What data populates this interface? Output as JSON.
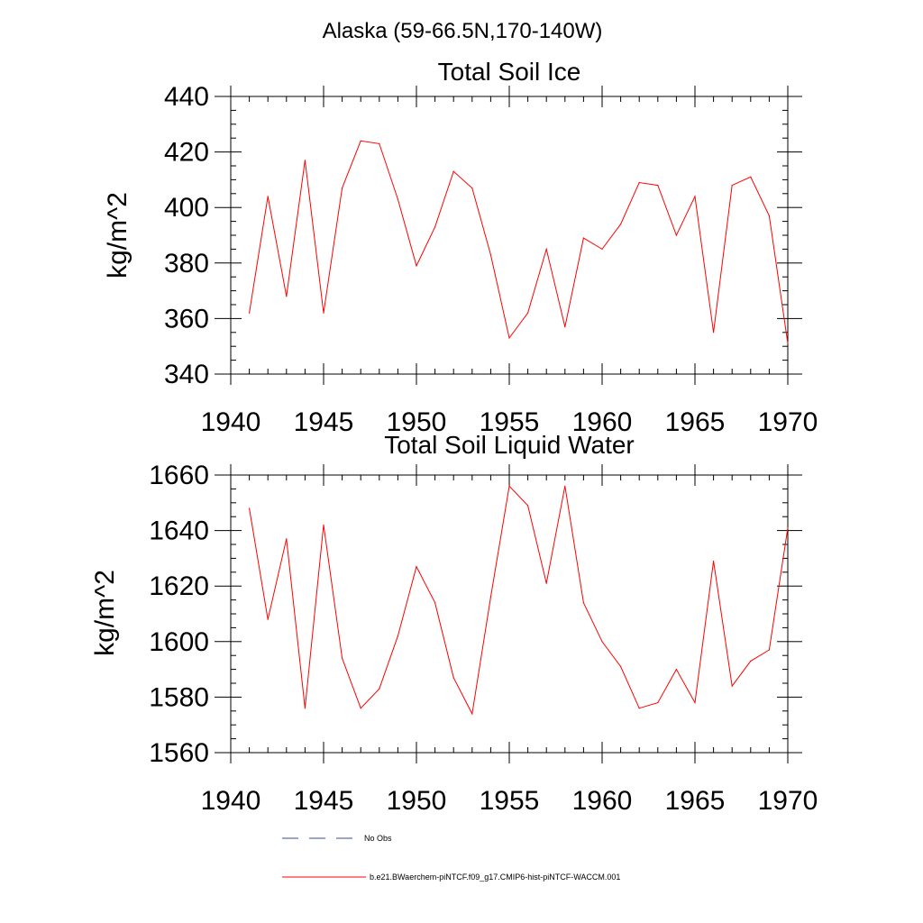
{
  "figure": {
    "title": "Alaska (59-66.5N,170-140W)",
    "legend": [
      {
        "label": "No Obs",
        "color": "#3a4a9a",
        "dash": "dashed"
      },
      {
        "label": "b.e21.BWaerchem-piNTCF.f09_g17.CMIP6-hist-piNTCF-WACCM.001",
        "color": "#ff0000",
        "dash": "solid"
      }
    ]
  },
  "chart_data": [
    {
      "type": "line",
      "title": "Total Soil Ice",
      "ylabel": "kg/m^2",
      "xlabel": "",
      "xlim": [
        1940,
        1970
      ],
      "ylim": [
        340,
        440
      ],
      "xticks": [
        1940,
        1945,
        1950,
        1955,
        1960,
        1965,
        1970
      ],
      "yticks": [
        340,
        360,
        380,
        400,
        420,
        440
      ],
      "x": [
        1941,
        1942,
        1943,
        1944,
        1945,
        1946,
        1947,
        1948,
        1949,
        1950,
        1951,
        1952,
        1953,
        1954,
        1955,
        1956,
        1957,
        1958,
        1959,
        1960,
        1961,
        1962,
        1963,
        1964,
        1965,
        1966,
        1967,
        1968,
        1969,
        1970
      ],
      "series": [
        {
          "name": "b.e21.BWaerchem-piNTCF.f09_g17.CMIP6-hist-piNTCF-WACCM.001",
          "color": "#ff0000",
          "values": [
            362,
            404,
            368,
            417,
            362,
            407,
            424,
            423,
            403,
            379,
            393,
            413,
            407,
            383,
            353,
            362,
            385,
            357,
            389,
            385,
            394,
            409,
            408,
            390,
            404,
            355,
            408,
            411,
            397,
            351
          ]
        }
      ]
    },
    {
      "type": "line",
      "title": "Total Soil Liquid Water",
      "ylabel": "kg/m^2",
      "xlabel": "",
      "xlim": [
        1940,
        1970
      ],
      "ylim": [
        1560,
        1660
      ],
      "xticks": [
        1940,
        1945,
        1950,
        1955,
        1960,
        1965,
        1970
      ],
      "yticks": [
        1560,
        1580,
        1600,
        1620,
        1640,
        1660
      ],
      "x": [
        1941,
        1942,
        1943,
        1944,
        1945,
        1946,
        1947,
        1948,
        1949,
        1950,
        1951,
        1952,
        1953,
        1954,
        1955,
        1956,
        1957,
        1958,
        1959,
        1960,
        1961,
        1962,
        1963,
        1964,
        1965,
        1966,
        1967,
        1968,
        1969,
        1970
      ],
      "series": [
        {
          "name": "b.e21.BWaerchem-piNTCF.f09_g17.CMIP6-hist-piNTCF-WACCM.001",
          "color": "#ff0000",
          "values": [
            1648,
            1608,
            1637,
            1576,
            1642,
            1594,
            1576,
            1583,
            1602,
            1627,
            1614,
            1587,
            1574,
            1616,
            1656,
            1649,
            1621,
            1656,
            1614,
            1600,
            1591,
            1576,
            1578,
            1590,
            1578,
            1629,
            1584,
            1593,
            1597,
            1641
          ]
        }
      ]
    }
  ]
}
